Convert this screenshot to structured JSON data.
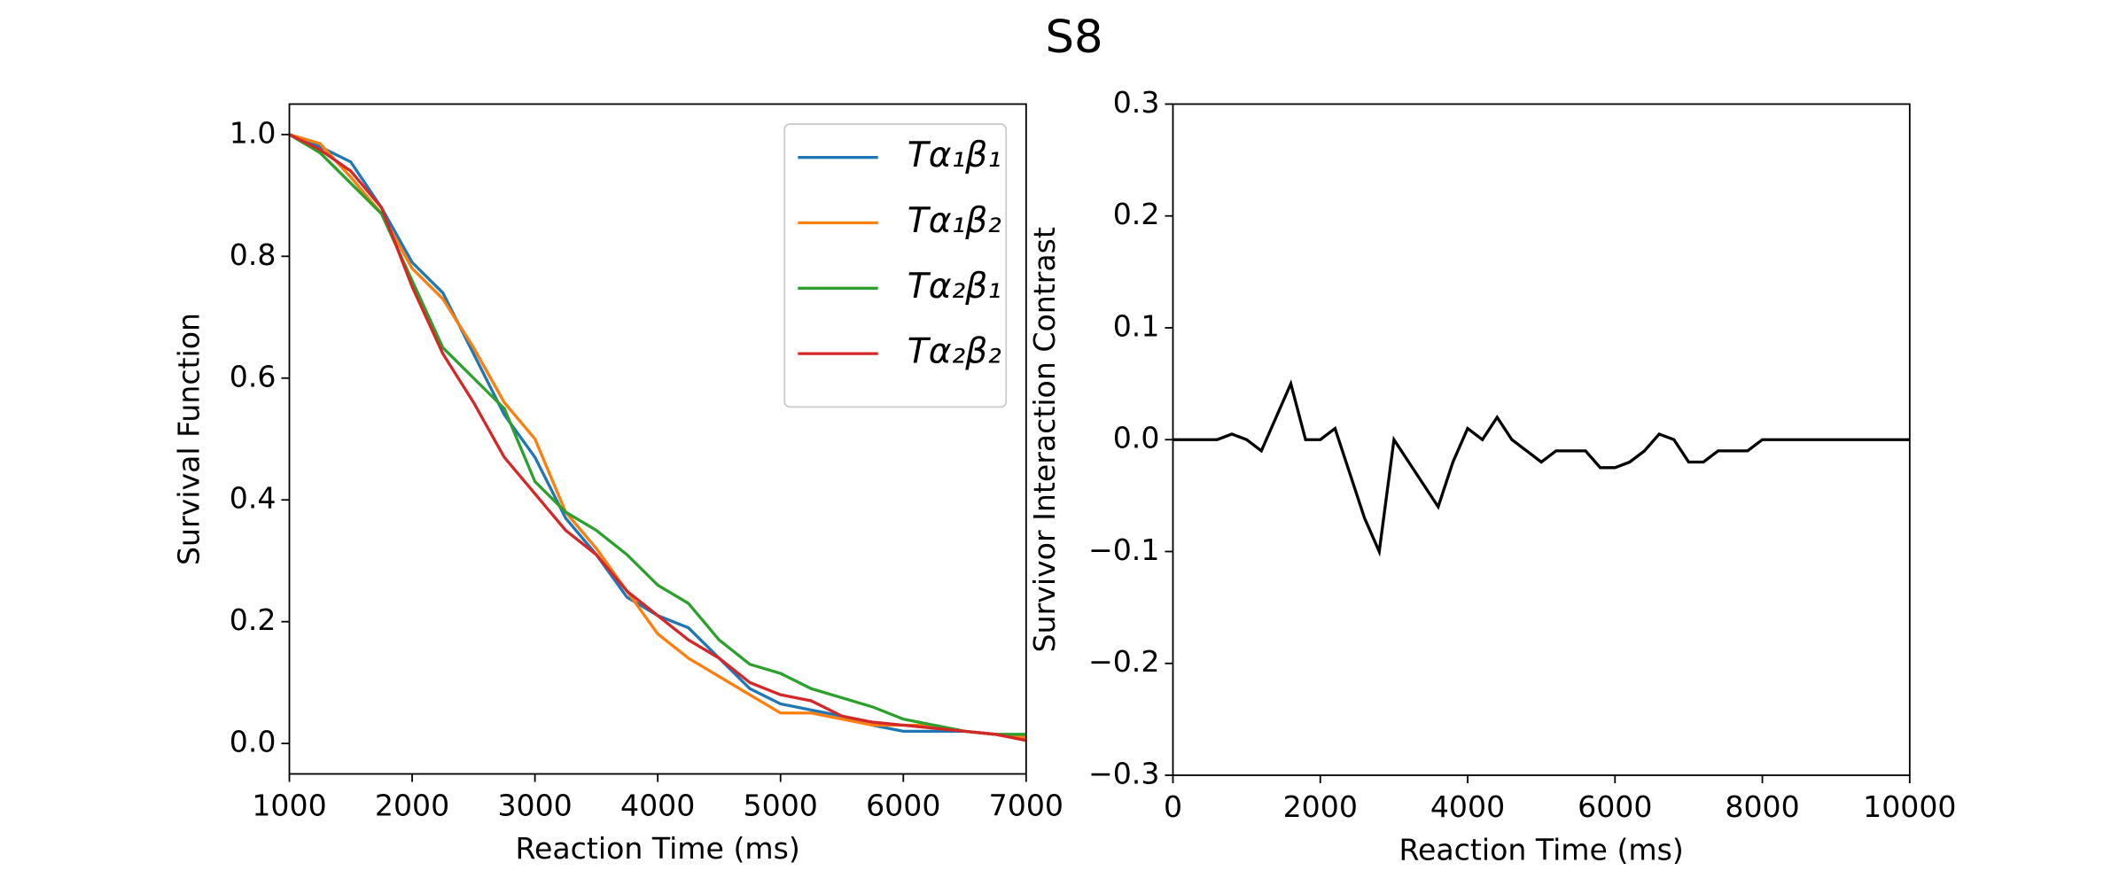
{
  "title": "S8",
  "chart_data": [
    {
      "type": "line",
      "xlabel": "Reaction Time (ms)",
      "ylabel": "Survival Function",
      "x": [
        1000,
        1250,
        1500,
        1750,
        2000,
        2250,
        2500,
        2750,
        3000,
        3250,
        3500,
        3750,
        4000,
        4250,
        4500,
        4750,
        5000,
        5250,
        5500,
        5750,
        6000,
        6250,
        6500,
        6750,
        7000
      ],
      "series": [
        {
          "name": "Tα₁β₁",
          "color": "#1f77b4",
          "values": [
            1.0,
            0.98,
            0.955,
            0.88,
            0.79,
            0.74,
            0.64,
            0.54,
            0.47,
            0.37,
            0.31,
            0.24,
            0.21,
            0.19,
            0.14,
            0.09,
            0.065,
            0.055,
            0.045,
            0.03,
            0.02,
            0.02,
            0.02,
            0.015,
            0.01
          ]
        },
        {
          "name": "Tα₁β₂",
          "color": "#ff7f0e",
          "values": [
            1.0,
            0.985,
            0.93,
            0.87,
            0.78,
            0.73,
            0.65,
            0.56,
            0.5,
            0.38,
            0.32,
            0.25,
            0.18,
            0.14,
            0.11,
            0.08,
            0.05,
            0.05,
            0.04,
            0.03,
            0.03,
            0.03,
            0.02,
            0.015,
            0.01
          ]
        },
        {
          "name": "Tα₂β₁",
          "color": "#2ca02c",
          "values": [
            1.0,
            0.97,
            0.92,
            0.87,
            0.76,
            0.65,
            0.6,
            0.55,
            0.43,
            0.38,
            0.35,
            0.31,
            0.26,
            0.23,
            0.17,
            0.13,
            0.115,
            0.09,
            0.075,
            0.06,
            0.04,
            0.03,
            0.02,
            0.015,
            0.015
          ]
        },
        {
          "name": "Tα₂β₂",
          "color": "#d62728",
          "values": [
            1.0,
            0.975,
            0.94,
            0.88,
            0.75,
            0.64,
            0.56,
            0.47,
            0.41,
            0.35,
            0.31,
            0.25,
            0.21,
            0.17,
            0.14,
            0.1,
            0.08,
            0.07,
            0.045,
            0.035,
            0.03,
            0.025,
            0.02,
            0.015,
            0.005
          ]
        }
      ],
      "xlim": [
        1000,
        7000
      ],
      "xticks": [
        1000,
        2000,
        3000,
        4000,
        5000,
        6000,
        7000
      ],
      "ylim": [
        -0.05,
        1.05
      ],
      "yticks": [
        {
          "value": 0,
          "label": "0.0"
        },
        0.2,
        0.4,
        0.6,
        0.8,
        {
          "value": 1,
          "label": "1.0"
        }
      ],
      "legend": "upper right",
      "grid": false
    },
    {
      "type": "line",
      "xlabel": "Reaction Time (ms)",
      "ylabel": "Survivor Interaction Contrast",
      "x": [
        0,
        200,
        400,
        600,
        800,
        1000,
        1200,
        1400,
        1600,
        1800,
        2000,
        2200,
        2400,
        2600,
        2800,
        3000,
        3200,
        3400,
        3600,
        3800,
        4000,
        4200,
        4400,
        4600,
        4800,
        5000,
        5200,
        5400,
        5600,
        5800,
        6000,
        6200,
        6400,
        6600,
        6800,
        7000,
        7200,
        7400,
        7600,
        7800,
        8000,
        8200,
        8400,
        8600,
        8800,
        9000,
        9200,
        9400,
        9600,
        9800,
        10000
      ],
      "series": [
        {
          "color": "#000000",
          "values": [
            0,
            0,
            0,
            0,
            0.005,
            0,
            -0.01,
            0.02,
            0.05,
            0,
            0,
            0.01,
            -0.03,
            -0.07,
            -0.1,
            0,
            -0.02,
            -0.04,
            -0.06,
            -0.02,
            0.01,
            0,
            0.02,
            0,
            -0.01,
            -0.02,
            -0.01,
            -0.01,
            -0.01,
            -0.025,
            -0.025,
            -0.02,
            -0.01,
            0.005,
            0,
            -0.02,
            -0.02,
            -0.01,
            -0.01,
            -0.01,
            0,
            0,
            0,
            0,
            0,
            0,
            0,
            0,
            0,
            0,
            0
          ]
        }
      ],
      "xlim": [
        0,
        10000
      ],
      "xticks": [
        0,
        2000,
        4000,
        6000,
        8000,
        10000
      ],
      "ylim": [
        -0.3,
        0.3
      ],
      "yticks": [
        {
          "value": -0.3,
          "label": "−0.3"
        },
        {
          "value": -0.2,
          "label": "−0.2"
        },
        {
          "value": -0.1,
          "label": "−0.1"
        },
        {
          "value": 0,
          "label": "0.0"
        },
        0.1,
        0.2,
        0.3
      ],
      "grid": false
    }
  ]
}
